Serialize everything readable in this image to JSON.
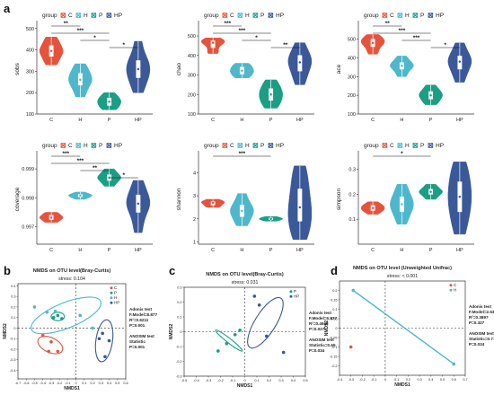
{
  "colors": {
    "C": "#e5533d",
    "H": "#4db8cc",
    "P": "#1a9e84",
    "HP": "#3b5998"
  },
  "panel_letters": [
    "a",
    "b",
    "c",
    "d"
  ],
  "legend": {
    "title": "group",
    "entries": [
      "C",
      "H",
      "P",
      "HP"
    ]
  },
  "chart_data": [
    {
      "type": "violin",
      "panel": "a",
      "ylabel": "sobs",
      "categories": [
        "C",
        "H",
        "P",
        "HP"
      ],
      "ylim": [
        100,
        520
      ],
      "yticks": [
        100,
        200,
        300,
        400,
        500
      ],
      "series": [
        {
          "name": "C",
          "values": [
            330,
            350,
            370,
            385,
            395,
            405,
            420,
            440,
            460
          ]
        },
        {
          "name": "H",
          "values": [
            180,
            210,
            235,
            250,
            260,
            275,
            290,
            310,
            335
          ]
        },
        {
          "name": "P",
          "values": [
            120,
            130,
            140,
            150,
            158,
            165,
            175,
            185,
            200
          ]
        },
        {
          "name": "HP",
          "values": [
            200,
            240,
            270,
            290,
            310,
            330,
            350,
            380,
            440
          ]
        }
      ],
      "significance": [
        {
          "pair": [
            "C",
            "H"
          ],
          "label": "**"
        },
        {
          "pair": [
            "C",
            "P"
          ],
          "label": "***"
        },
        {
          "pair": [
            "H",
            "P"
          ],
          "label": "*"
        },
        {
          "pair": [
            "P",
            "HP"
          ],
          "label": "*"
        }
      ]
    },
    {
      "type": "violin",
      "panel": "a",
      "ylabel": "chao",
      "categories": [
        "C",
        "H",
        "P",
        "HP"
      ],
      "ylim": [
        100,
        560
      ],
      "yticks": [
        100,
        200,
        300,
        400,
        500
      ],
      "series": [
        {
          "name": "C",
          "values": [
            410,
            420,
            440,
            455,
            465,
            470,
            475,
            480,
            490
          ]
        },
        {
          "name": "H",
          "values": [
            285,
            295,
            305,
            315,
            322,
            330,
            340,
            350,
            360
          ]
        },
        {
          "name": "P",
          "values": [
            130,
            150,
            170,
            185,
            200,
            215,
            230,
            250,
            275
          ]
        },
        {
          "name": "HP",
          "values": [
            250,
            290,
            320,
            345,
            365,
            380,
            400,
            425,
            465
          ]
        }
      ],
      "significance": [
        {
          "pair": [
            "C",
            "H"
          ],
          "label": "***"
        },
        {
          "pair": [
            "C",
            "P"
          ],
          "label": "***"
        },
        {
          "pair": [
            "H",
            "P"
          ],
          "label": "*"
        },
        {
          "pair": [
            "P",
            "HP"
          ],
          "label": "**"
        }
      ]
    },
    {
      "type": "violin",
      "panel": "a",
      "ylabel": "ace",
      "categories": [
        "C",
        "H",
        "P",
        "HP"
      ],
      "ylim": [
        100,
        580
      ],
      "yticks": [
        100,
        200,
        300,
        400,
        500
      ],
      "series": [
        {
          "name": "C",
          "values": [
            420,
            440,
            460,
            475,
            480,
            490,
            500,
            510,
            525
          ]
        },
        {
          "name": "H",
          "values": [
            300,
            320,
            340,
            350,
            358,
            365,
            375,
            390,
            410
          ]
        },
        {
          "name": "P",
          "values": [
            150,
            165,
            180,
            192,
            200,
            210,
            220,
            235,
            255
          ]
        },
        {
          "name": "HP",
          "values": [
            270,
            310,
            340,
            360,
            380,
            395,
            410,
            440,
            480
          ]
        }
      ],
      "significance": [
        {
          "pair": [
            "C",
            "H"
          ],
          "label": "**"
        },
        {
          "pair": [
            "C",
            "P"
          ],
          "label": "***"
        },
        {
          "pair": [
            "H",
            "P"
          ],
          "label": "***"
        },
        {
          "pair": [
            "P",
            "HP"
          ],
          "label": "*"
        }
      ]
    },
    {
      "type": "violin",
      "panel": "a",
      "ylabel": "coverage",
      "categories": [
        "C",
        "H",
        "P",
        "HP"
      ],
      "ylim": [
        0.9964,
        0.9995
      ],
      "yticks": [
        0.997,
        0.998,
        0.999
      ],
      "series": [
        {
          "name": "C",
          "values": [
            0.99715,
            0.9972,
            0.99725,
            0.9973,
            0.99732,
            0.99735,
            0.9974,
            0.99745,
            0.9975
          ]
        },
        {
          "name": "H",
          "values": [
            0.99795,
            0.998,
            0.99803,
            0.99805,
            0.99808,
            0.9981,
            0.99812,
            0.99815,
            0.9982
          ]
        },
        {
          "name": "P",
          "values": [
            0.9984,
            0.9985,
            0.9986,
            0.99865,
            0.9987,
            0.99875,
            0.9988,
            0.9989,
            0.999
          ]
        },
        {
          "name": "HP",
          "values": [
            0.9968,
            0.9972,
            0.9975,
            0.9977,
            0.9978,
            0.9979,
            0.9981,
            0.9983,
            0.9986
          ]
        }
      ],
      "significance": [
        {
          "pair": [
            "C",
            "H"
          ],
          "label": "***"
        },
        {
          "pair": [
            "C",
            "P"
          ],
          "label": "***"
        },
        {
          "pair": [
            "H",
            "P"
          ],
          "label": "**"
        },
        {
          "pair": [
            "P",
            "HP"
          ],
          "label": "*"
        }
      ]
    },
    {
      "type": "violin",
      "panel": "a",
      "ylabel": "shannon",
      "categories": [
        "C",
        "H",
        "P",
        "HP"
      ],
      "ylim": [
        0.9,
        4.8
      ],
      "yticks": [
        1,
        2,
        3,
        4
      ],
      "series": [
        {
          "name": "C",
          "values": [
            2.5,
            2.55,
            2.6,
            2.65,
            2.7,
            2.72,
            2.75,
            2.8,
            2.85
          ]
        },
        {
          "name": "H",
          "values": [
            1.7,
            1.9,
            2.1,
            2.25,
            2.35,
            2.45,
            2.6,
            2.8,
            3.1
          ]
        },
        {
          "name": "P",
          "values": [
            1.9,
            1.93,
            1.96,
            1.98,
            2.0,
            2.02,
            2.04,
            2.07,
            2.1
          ]
        },
        {
          "name": "HP",
          "values": [
            1.1,
            1.5,
            1.9,
            2.2,
            2.5,
            2.9,
            3.3,
            3.8,
            4.3
          ]
        }
      ],
      "significance": [
        {
          "pair": [
            "C",
            "P"
          ],
          "label": "***"
        }
      ]
    },
    {
      "type": "violin",
      "panel": "a",
      "ylabel": "simpson",
      "categories": [
        "C",
        "H",
        "P",
        "HP"
      ],
      "ylim": [
        0.0,
        0.36
      ],
      "yticks": [
        0.1,
        0.2,
        0.3
      ],
      "series": [
        {
          "name": "C",
          "values": [
            0.12,
            0.13,
            0.135,
            0.14,
            0.145,
            0.15,
            0.155,
            0.16,
            0.17
          ]
        },
        {
          "name": "H",
          "values": [
            0.08,
            0.11,
            0.13,
            0.15,
            0.16,
            0.17,
            0.19,
            0.21,
            0.24
          ]
        },
        {
          "name": "P",
          "values": [
            0.18,
            0.19,
            0.2,
            0.205,
            0.21,
            0.215,
            0.22,
            0.23,
            0.24
          ]
        },
        {
          "name": "HP",
          "values": [
            0.04,
            0.09,
            0.13,
            0.16,
            0.19,
            0.22,
            0.25,
            0.29,
            0.33
          ]
        }
      ],
      "significance": [
        {
          "pair": [
            "C",
            "P"
          ],
          "label": "*"
        }
      ]
    },
    {
      "type": "scatter",
      "panel": "b",
      "title": "NMDS on OTU level(Bray-Curtis)",
      "subtitle": "stress: 0.104",
      "xlabel": "NMDS1",
      "ylabel": "NMDS2",
      "xlim": [
        -0.7,
        0.6
      ],
      "ylim": [
        -0.48,
        0.42
      ],
      "xticks": [
        -0.7,
        -0.6,
        -0.5,
        -0.4,
        -0.3,
        -0.2,
        -0.1,
        0,
        0.1,
        0.2,
        0.3,
        0.4,
        0.5,
        0.6
      ],
      "yticks": [
        -0.4,
        -0.3,
        -0.2,
        -0.1,
        0,
        0.1,
        0.2,
        0.3,
        0.4
      ],
      "legend": [
        "C",
        "P",
        "H",
        "HP"
      ],
      "stats_text": [
        "Adonis test",
        "F.Model=8.877",
        "R²=0.6211",
        "P=0.001",
        "",
        "ANOSIM test",
        "Statistic",
        "P=0.001"
      ],
      "series": [
        {
          "name": "C",
          "points": [
            [
              -0.4,
              -0.07
            ],
            [
              -0.3,
              -0.13
            ],
            [
              -0.22,
              -0.22
            ],
            [
              -0.33,
              -0.22
            ]
          ],
          "ellipse": {
            "cx": -0.31,
            "cy": -0.16,
            "rx": 0.16,
            "ry": 0.07,
            "angle": 25
          }
        },
        {
          "name": "P",
          "points": [
            [
              -0.27,
              0.1
            ],
            [
              -0.22,
              0.12
            ],
            [
              -0.17,
              0.09
            ]
          ],
          "ellipse": {
            "cx": -0.22,
            "cy": 0.11,
            "rx": 0.08,
            "ry": 0.04,
            "angle": 0
          }
        },
        {
          "name": "H",
          "points": [
            [
              -0.5,
              0.2
            ],
            [
              -0.35,
              0.15
            ],
            [
              -0.25,
              0.16
            ],
            [
              0.05,
              0.12
            ],
            [
              0.2,
              0.0
            ]
          ],
          "ellipse": {
            "cx": -0.12,
            "cy": 0.12,
            "rx": 0.45,
            "ry": 0.12,
            "angle": -22
          }
        },
        {
          "name": "HP",
          "points": [
            [
              0.32,
              -0.05
            ],
            [
              0.4,
              -0.12
            ],
            [
              0.35,
              -0.27
            ],
            [
              0.28,
              -0.1
            ]
          ],
          "ellipse": {
            "cx": 0.34,
            "cy": -0.12,
            "rx": 0.1,
            "ry": 0.2,
            "angle": 8
          }
        }
      ]
    },
    {
      "type": "scatter",
      "panel": "c",
      "title": "NMDS on OTU level(Bray-Curtis)",
      "subtitle": "stress: 0.031",
      "xlabel": "NMDS1",
      "ylabel": "NMDS2",
      "xlim": [
        -0.5,
        0.5
      ],
      "ylim": [
        -0.3,
        0.3
      ],
      "xticks": [
        -0.5,
        -0.4,
        -0.3,
        -0.2,
        -0.1,
        0,
        0.1,
        0.2,
        0.3,
        0.4,
        0.5
      ],
      "yticks": [
        -0.3,
        -0.2,
        -0.1,
        0,
        0.1,
        0.2,
        0.3
      ],
      "legend": [
        "P",
        "HP"
      ],
      "stats_text": [
        "Adonis test",
        "F.Model=6.877",
        "R²=0.4948",
        "P=0.027",
        "",
        "ANOSIM test",
        "Statistic=0.65",
        "P=0.034"
      ],
      "series": [
        {
          "name": "P",
          "points": [
            [
              -0.22,
              -0.13
            ],
            [
              -0.15,
              -0.08
            ],
            [
              -0.08,
              -0.02
            ],
            [
              -0.04,
              0.01
            ]
          ],
          "ellipse": {
            "cx": -0.13,
            "cy": -0.06,
            "rx": 0.14,
            "ry": 0.015,
            "angle": 38
          }
        },
        {
          "name": "HP",
          "points": [
            [
              0.08,
              0.24
            ],
            [
              0.12,
              0.18
            ],
            [
              0.18,
              -0.03
            ],
            [
              0.32,
              -0.14
            ]
          ],
          "ellipse": {
            "cx": 0.17,
            "cy": 0.06,
            "rx": 0.24,
            "ry": 0.07,
            "angle": -58
          }
        }
      ]
    },
    {
      "type": "scatter",
      "panel": "d",
      "title": "NMDS on OTU level (Unweighted Unifrac)",
      "subtitle": "stress: < 0.001",
      "xlabel": "NMDS1",
      "ylabel": "NMDS2",
      "xlim": [
        -0.4,
        0.7
      ],
      "ylim": [
        -0.25,
        0.25
      ],
      "xticks": [
        -0.4,
        -0.3,
        -0.2,
        -0.1,
        0,
        0.1,
        0.2,
        0.3,
        0.4,
        0.5,
        0.6,
        0.7
      ],
      "yticks": [
        -0.2,
        -0.15,
        -0.1,
        -0.05,
        0,
        0.05,
        0.1,
        0.15,
        0.2
      ],
      "legend": [
        "C",
        "H"
      ],
      "stats_text": [
        "Adonis test",
        "F.Model=2.532",
        "R²=0.3897",
        "P=0.327",
        "",
        "ANOSIM test",
        "Statistic=0.77",
        "P=0.034"
      ],
      "series": [
        {
          "name": "C",
          "points": [
            [
              -0.3,
              -0.1
            ]
          ]
        },
        {
          "name": "H",
          "points": [
            [
              -0.28,
              0.2
            ],
            [
              0.6,
              -0.19
            ]
          ],
          "line": true
        }
      ]
    }
  ]
}
